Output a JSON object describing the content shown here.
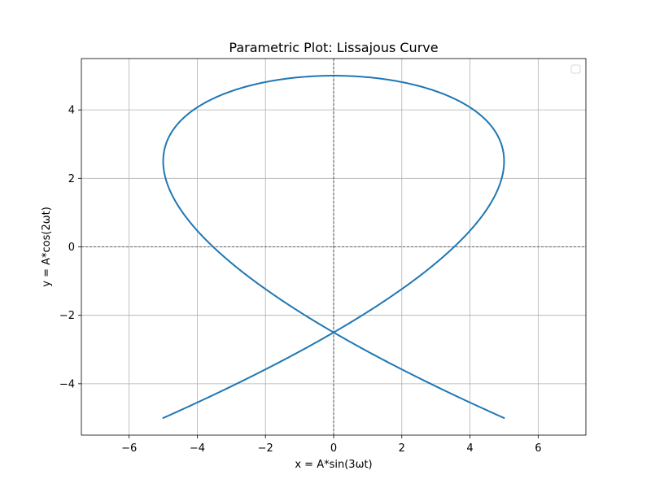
{
  "chart_data": {
    "type": "line",
    "title": "Parametric Plot: Lissajous Curve",
    "xlabel": "x = A*sin(3ωt)",
    "ylabel": "y = A*cos(2ωt)",
    "xlim": [
      -7.4,
      7.4
    ],
    "ylim": [
      -5.5,
      5.5
    ],
    "xticks": [
      -6,
      -4,
      -2,
      0,
      2,
      4,
      6
    ],
    "yticks": [
      -4,
      -2,
      0,
      2,
      4
    ],
    "xtick_labels": [
      "−6",
      "−4",
      "−2",
      "0",
      "2",
      "4",
      "6"
    ],
    "ytick_labels": [
      "−4",
      "−2",
      "0",
      "2",
      "4"
    ],
    "grid": true,
    "zero_lines": true,
    "legend": {
      "placement": "top-right",
      "entries": []
    },
    "series": [
      {
        "amplitude": 5,
        "x_frequency": 3,
        "y_frequency": 2,
        "x_function": "sin",
        "y_function": "cos",
        "color": "#1f77b4"
      }
    ]
  }
}
